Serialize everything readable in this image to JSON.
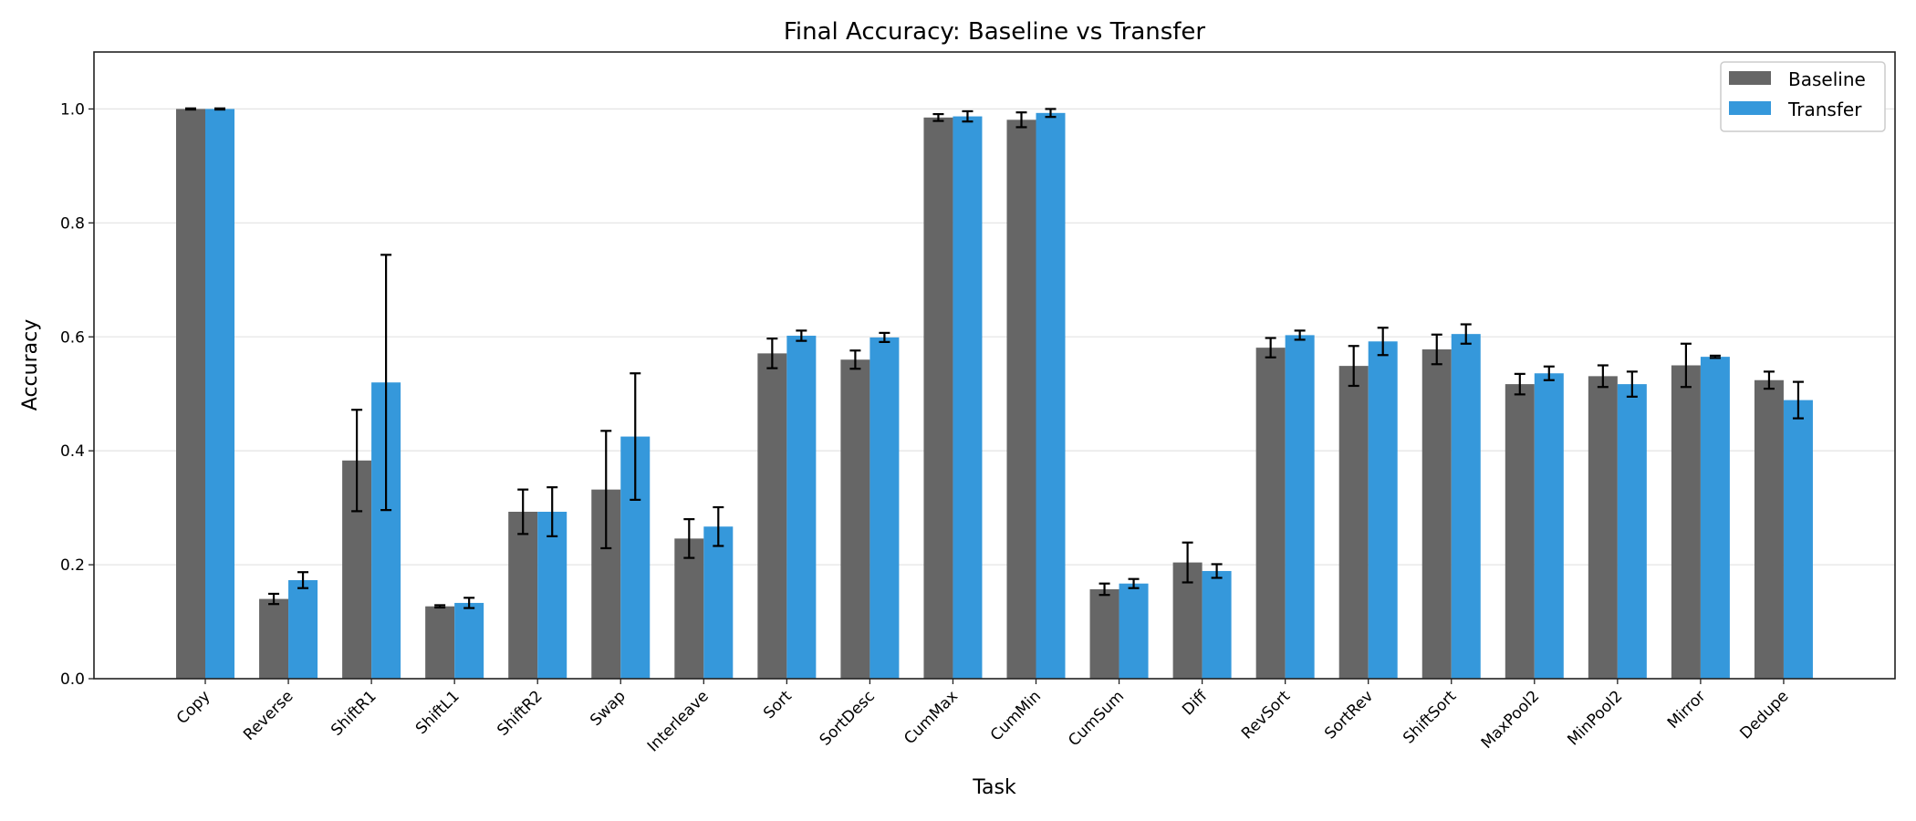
{
  "chart_data": {
    "type": "bar",
    "title": "Final Accuracy: Baseline vs Transfer",
    "xlabel": "Task",
    "ylabel": "Accuracy",
    "ylim": [
      0,
      1.1
    ],
    "yticks": [
      "0.0",
      "0.2",
      "0.4",
      "0.6",
      "0.8",
      "1.0"
    ],
    "grid": "horizontal",
    "legend_position": "top-right",
    "categories": [
      "Copy",
      "Reverse",
      "ShiftR1",
      "ShiftL1",
      "ShiftR2",
      "Swap",
      "Interleave",
      "Sort",
      "SortDesc",
      "CumMax",
      "CumMin",
      "CumSum",
      "Diff",
      "RevSort",
      "SortRev",
      "ShiftSort",
      "MaxPool2",
      "MinPool2",
      "Mirror",
      "Dedupe"
    ],
    "series": [
      {
        "name": "Baseline",
        "color": "#666666",
        "values": [
          1.0,
          0.14,
          0.383,
          0.127,
          0.293,
          0.332,
          0.246,
          0.571,
          0.56,
          0.985,
          0.981,
          0.157,
          0.204,
          0.581,
          0.549,
          0.578,
          0.517,
          0.531,
          0.55,
          0.524
        ],
        "errors": [
          0.001,
          0.009,
          0.089,
          0.002,
          0.039,
          0.103,
          0.034,
          0.026,
          0.016,
          0.006,
          0.013,
          0.01,
          0.035,
          0.017,
          0.035,
          0.026,
          0.018,
          0.019,
          0.038,
          0.015
        ]
      },
      {
        "name": "Transfer",
        "color": "#3598db",
        "values": [
          1.0,
          0.173,
          0.52,
          0.133,
          0.293,
          0.425,
          0.267,
          0.602,
          0.599,
          0.987,
          0.993,
          0.167,
          0.189,
          0.603,
          0.592,
          0.605,
          0.536,
          0.517,
          0.565,
          0.489
        ],
        "errors": [
          0.001,
          0.014,
          0.224,
          0.009,
          0.043,
          0.111,
          0.034,
          0.009,
          0.008,
          0.009,
          0.007,
          0.008,
          0.012,
          0.008,
          0.024,
          0.017,
          0.012,
          0.022,
          0.002,
          0.032
        ]
      }
    ]
  }
}
